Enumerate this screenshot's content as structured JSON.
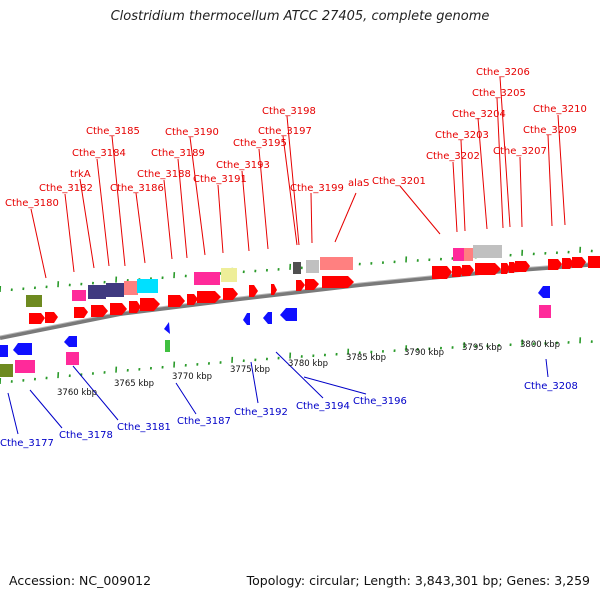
{
  "title": "Clostridium thermocellum ATCC 27405, complete genome",
  "footer": {
    "accession": "Accession: NC_009012",
    "summary": "Topology: circular; Length: 3,843,301 bp; Genes: 3,259"
  },
  "colors": {
    "forward_label": "#e60000",
    "reverse_label": "#0000c8",
    "backbone": "#808080",
    "tick": "#2a9a2a",
    "feature_red": "#ff0000",
    "feature_blue": "#1010ff",
    "feature_pink": "#ff2a9a",
    "feature_olive": "#6e8a20",
    "feature_navy": "#403a80",
    "feature_cyan": "#00e0ff",
    "feature_salmon": "#ff8080",
    "feature_gray": "#c0c0c0",
    "feature_dark": "#505050",
    "feature_khaki": "#eeee99",
    "feature_green": "#40c040"
  },
  "scale_labels": [
    "3760 kbp",
    "3765 kbp",
    "3770 kbp",
    "3775 kbp",
    "3780 kbp",
    "3785 kbp",
    "3790 kbp",
    "3795 kbp",
    "3800 kbp"
  ],
  "forward_labels": [
    "Cthe_3180",
    "Cthe_3182",
    "trkA",
    "Cthe_3184",
    "Cthe_3185",
    "Cthe_3186",
    "Cthe_3188",
    "Cthe_3189",
    "Cthe_3190",
    "Cthe_3191",
    "Cthe_3193",
    "Cthe_3195",
    "Cthe_3197",
    "Cthe_3198",
    "Cthe_3199",
    "alaS",
    "Cthe_3201",
    "Cthe_3202",
    "Cthe_3203",
    "Cthe_3204",
    "Cthe_3205",
    "Cthe_3206",
    "Cthe_3207",
    "Cthe_3209",
    "Cthe_3210"
  ],
  "reverse_labels": [
    "Cthe_3177",
    "Cthe_3178",
    "Cthe_3181",
    "Cthe_3187",
    "Cthe_3192",
    "Cthe_3194",
    "Cthe_3196",
    "Cthe_3208"
  ]
}
